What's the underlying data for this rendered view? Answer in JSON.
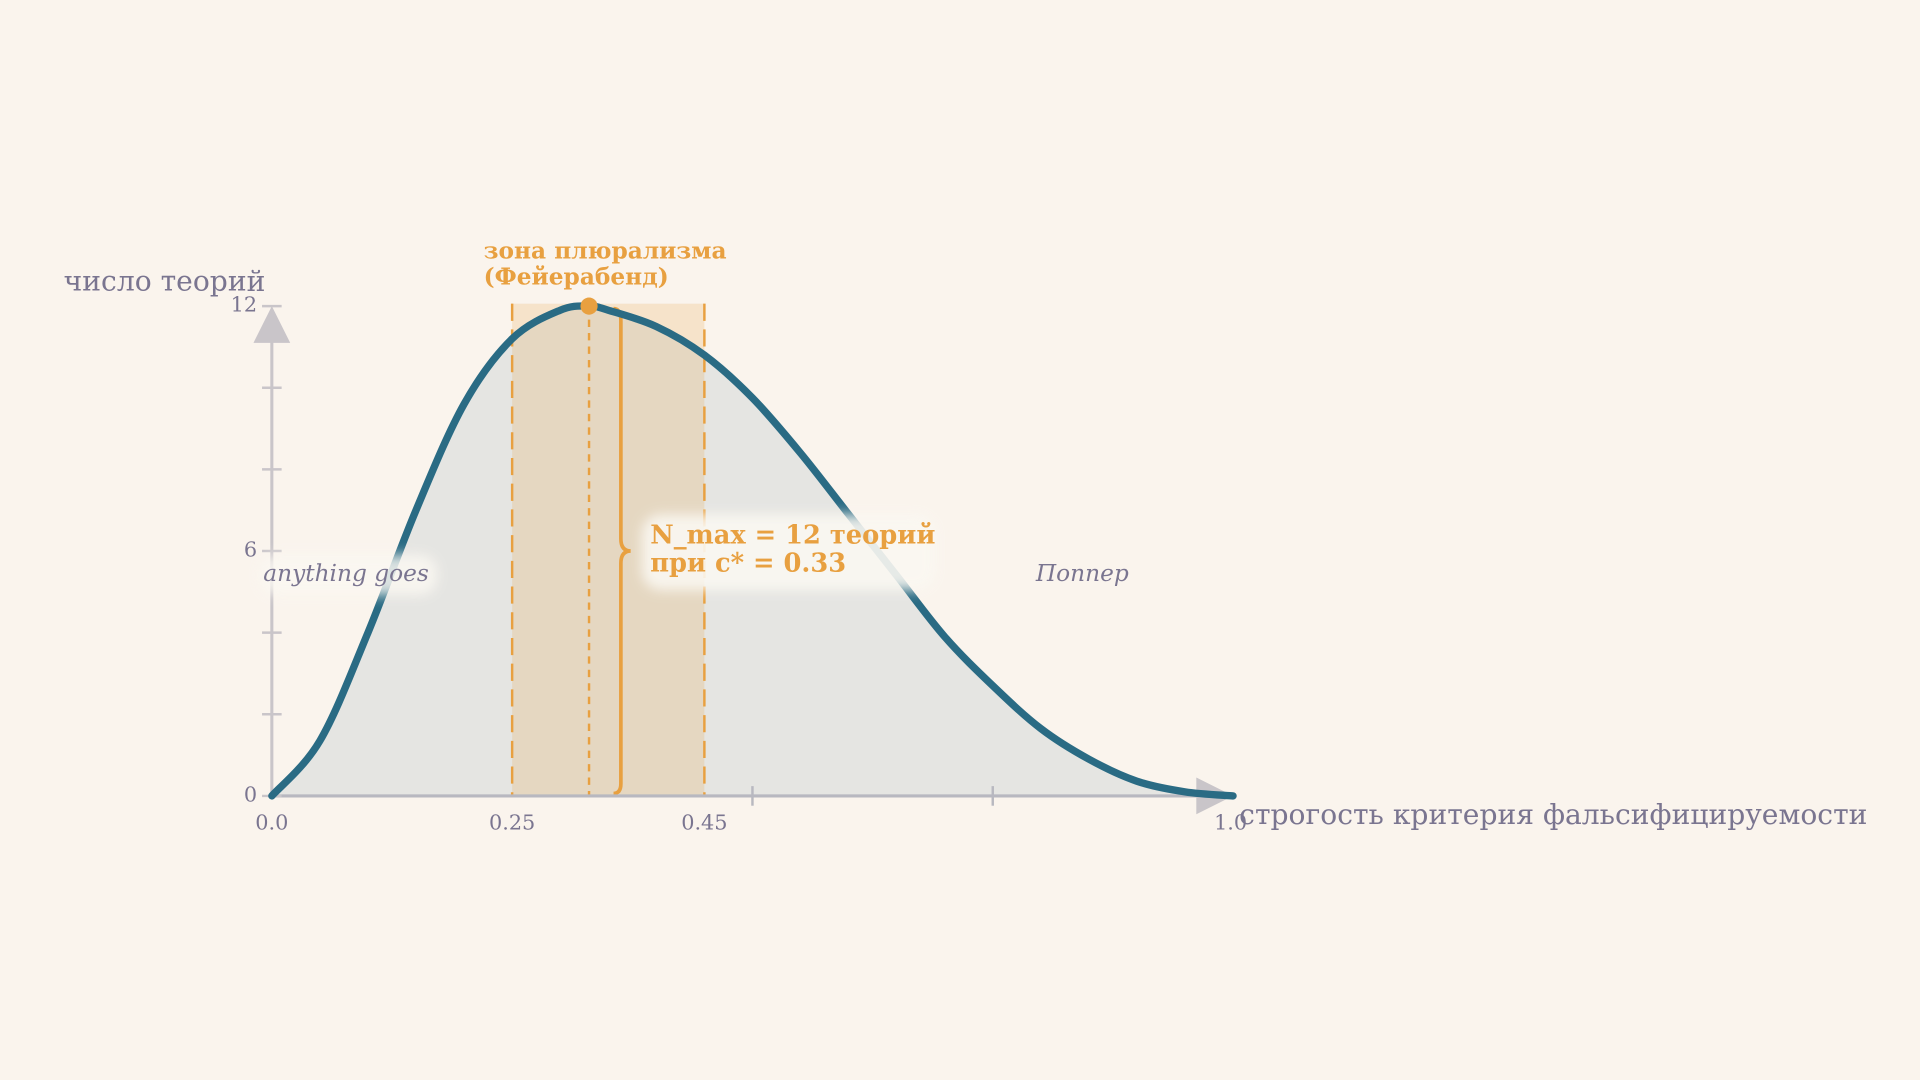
{
  "chart_data": {
    "type": "area-line",
    "x_label": "строгость критерия фальсифицируемости",
    "y_label": "число теорий",
    "x": [
      0,
      0.05,
      0.1,
      0.15,
      0.2,
      0.25,
      0.3,
      0.33,
      0.35,
      0.4,
      0.45,
      0.5,
      0.55,
      0.6,
      0.65,
      0.7,
      0.75,
      0.8,
      0.85,
      0.9,
      0.95,
      1.0
    ],
    "values": [
      0,
      1.35,
      4.0,
      7.0,
      9.6,
      11.2,
      11.9,
      12,
      11.9,
      11.5,
      10.8,
      9.75,
      8.4,
      6.9,
      5.4,
      3.9,
      2.7,
      1.65,
      0.9,
      0.36,
      0.1,
      0
    ],
    "color": "#2a6b84",
    "fill_color": "#e5e5e2",
    "xlim": [
      0,
      1
    ],
    "ylim": [
      0,
      12
    ],
    "xticks": [
      {
        "value": 0,
        "label": "0.0"
      },
      0.25,
      0.45,
      {
        "value": 1,
        "label": "1.0"
      }
    ],
    "x_minor_ticks": [
      0.5,
      0.75
    ],
    "yticks": [
      0,
      6,
      12
    ],
    "y_minor_ticks": [
      2,
      4,
      8,
      10
    ],
    "band": [
      0.25,
      0.45
    ],
    "band_color": "#e8a040",
    "peak": {
      "x": 0.33,
      "y": 12
    },
    "annotations": [
      "зона плюрализма",
      "(Фейерабенд)",
      "N_max = 12 теорий",
      "при c* = 0.33",
      "anything goes",
      "Поппер"
    ]
  }
}
